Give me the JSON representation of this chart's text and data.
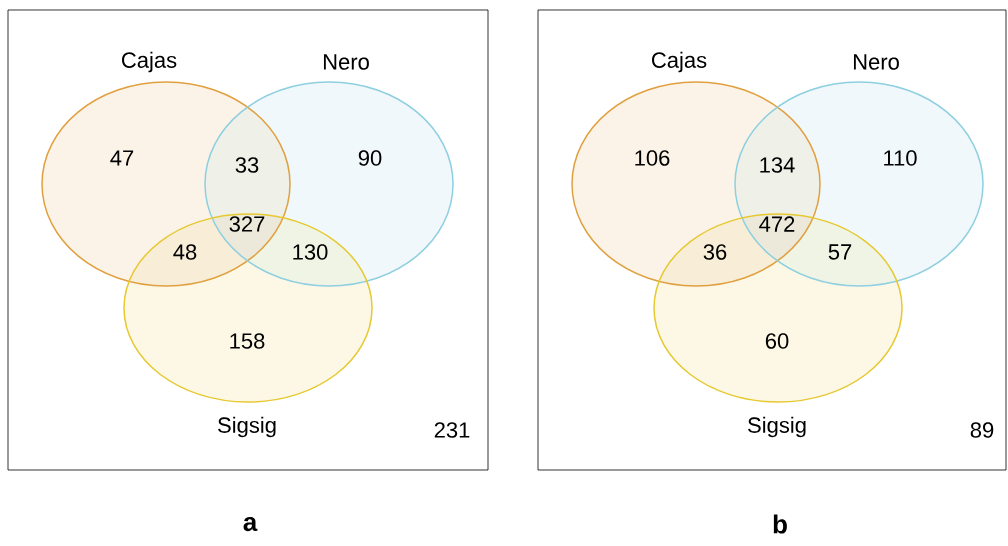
{
  "chart_data": [
    {
      "type": "other",
      "title": "a",
      "categories": [
        null,
        null,
        null,
        null,
        null,
        null,
        null,
        null
      ],
      "values": [
        47,
        33,
        90,
        48,
        327,
        130,
        158,
        231
      ],
      "data_labels": true,
      "annotations": [
        "Cajas",
        "Nero",
        "Sigsig"
      ],
      "colors": [
        "#fcf3e8",
        "#eff0e8",
        "#f0f8fb",
        "#f8eed8",
        "#ede9da",
        "#eff4e4",
        "#fdf8e6",
        "#ffffff"
      ]
    },
    {
      "type": "other",
      "title": "b",
      "categories": [
        null,
        null,
        null,
        null,
        null,
        null,
        null,
        null
      ],
      "values": [
        106,
        134,
        110,
        36,
        472,
        57,
        60,
        89
      ],
      "data_labels": true,
      "annotations": [
        "Cajas",
        "Nero",
        "Sigsig"
      ],
      "colors": [
        "#fcf3e8",
        "#eff0e8",
        "#f0f8fb",
        "#f8eed8",
        "#ede9da",
        "#eff4e4",
        "#fdf8e6",
        "#ffffff"
      ]
    }
  ]
}
